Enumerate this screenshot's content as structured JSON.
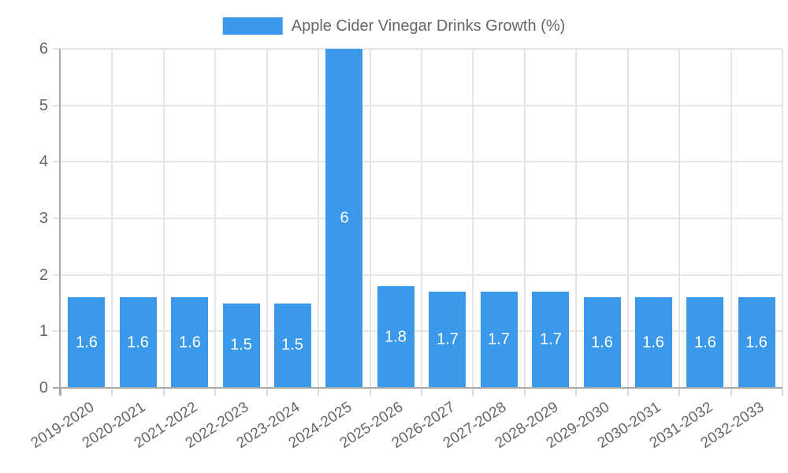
{
  "chart_data": {
    "type": "bar",
    "title": "",
    "series_label": "Apple Cider Vinegar Drinks Growth (%)",
    "categories": [
      "2019-2020",
      "2020-2021",
      "2021-2022",
      "2022-2023",
      "2023-2024",
      "2024-2025",
      "2025-2026",
      "2026-2027",
      "2027-2028",
      "2028-2029",
      "2029-2030",
      "2030-2031",
      "2031-2032",
      "2032-2033"
    ],
    "values": [
      1.6,
      1.6,
      1.6,
      1.5,
      1.5,
      6,
      1.8,
      1.7,
      1.7,
      1.7,
      1.6,
      1.6,
      1.6,
      1.6
    ],
    "bar_labels": [
      "1.6",
      "1.6",
      "1.6",
      "1.5",
      "1.5",
      "6",
      "1.8",
      "1.7",
      "1.7",
      "1.7",
      "1.6",
      "1.6",
      "1.6",
      "1.6"
    ],
    "xlabel": "",
    "ylabel": "",
    "ylim": [
      0,
      6
    ],
    "yticks": [
      0,
      1,
      2,
      3,
      4,
      5,
      6
    ],
    "grid": true,
    "legend_position": "top",
    "x_label_rotation_deg": -33,
    "colors": {
      "bar": "#3b99ec",
      "grid": "#e5e5e5",
      "axis": "#a9a9a9",
      "tick_mark": "#d9d9d9",
      "tick_label": "#666666",
      "legend_label": "#666666",
      "data_label": "#ffffff",
      "background": "#ffffff"
    }
  }
}
